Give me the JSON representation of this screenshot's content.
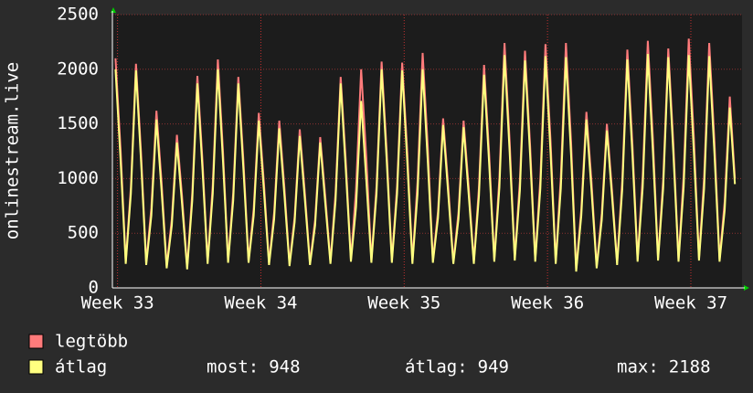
{
  "chart_data": {
    "type": "line",
    "y_label": "onlinestream.live",
    "x": [
      0.15,
      0.4,
      0.65,
      0.9,
      1.15,
      1.4,
      1.65,
      1.9,
      2.15,
      2.4,
      2.65,
      2.9,
      3.15,
      3.4,
      3.65,
      3.9,
      4.15,
      4.4,
      4.65,
      4.9,
      5.15,
      5.4,
      5.65,
      5.9,
      6.15,
      6.4,
      6.65,
      6.9,
      7.15,
      7.4,
      7.65,
      7.9,
      8.15,
      8.4,
      8.65,
      8.9,
      9.15,
      9.4,
      9.65,
      9.9,
      10.15,
      10.4,
      10.65,
      10.9,
      11.15,
      11.4,
      11.65,
      11.9,
      12.15,
      12.4,
      12.65,
      12.9,
      13.15,
      13.4,
      13.65,
      13.9,
      14.15,
      14.4,
      14.65,
      14.9,
      15.15,
      15.4,
      15.65,
      15.9,
      16.15,
      16.4,
      16.65,
      16.9,
      17.15,
      17.4,
      17.65,
      17.9,
      18.15,
      18.4,
      18.65,
      18.9,
      19.15,
      19.4,
      19.65,
      19.9,
      20.15,
      20.4,
      20.65,
      20.9,
      21.15,
      21.4,
      21.65,
      21.9,
      22.15,
      22.4,
      22.65,
      22.9,
      23.15,
      23.4,
      23.65,
      23.9,
      24.15,
      24.4,
      24.65,
      24.9,
      25.15,
      25.4,
      25.65,
      25.9,
      26.15,
      26.4,
      26.65,
      26.9,
      27.15,
      27.4,
      27.65,
      27.9,
      28.15,
      28.4,
      28.65,
      28.9,
      29.15,
      29.4,
      29.65,
      29.9,
      30.15,
      30.4
    ],
    "series": [
      {
        "name": "legtöbb",
        "color": "#ff7b7b",
        "values": [
          2100,
          1260,
          240,
          920,
          2050,
          1230,
          230,
          730,
          1620,
          970,
          200,
          630,
          1400,
          840,
          190,
          870,
          1940,
          1160,
          240,
          940,
          2090,
          1250,
          250,
          870,
          1930,
          1160,
          250,
          720,
          1600,
          960,
          230,
          690,
          1530,
          920,
          220,
          650,
          1450,
          870,
          230,
          620,
          1380,
          830,
          240,
          870,
          1930,
          1160,
          260,
          900,
          2000,
          1200,
          250,
          930,
          2070,
          1240,
          250,
          930,
          2060,
          1240,
          240,
          970,
          2150,
          1290,
          250,
          700,
          1550,
          930,
          240,
          690,
          1530,
          920,
          240,
          920,
          2040,
          1220,
          260,
          1010,
          2240,
          1340,
          270,
          980,
          2170,
          1300,
          260,
          1000,
          2230,
          1340,
          240,
          1010,
          2240,
          1340,
          170,
          720,
          1610,
          970,
          200,
          680,
          1500,
          900,
          230,
          980,
          2180,
          1310,
          260,
          1020,
          2260,
          1360,
          270,
          990,
          2190,
          1310,
          260,
          1030,
          2280,
          1370,
          270,
          1010,
          2240,
          1340,
          260,
          790,
          1750,
          1000
        ]
      },
      {
        "name": "átlag",
        "color": "#ffff80",
        "values": [
          2000,
          1160,
          220,
          860,
          1990,
          1150,
          210,
          660,
          1540,
          890,
          180,
          570,
          1330,
          770,
          170,
          800,
          1870,
          1080,
          220,
          860,
          2000,
          1160,
          230,
          800,
          1870,
          1080,
          230,
          660,
          1530,
          890,
          210,
          630,
          1460,
          850,
          200,
          600,
          1390,
          810,
          210,
          570,
          1330,
          770,
          220,
          800,
          1870,
          1080,
          240,
          740,
          1710,
          990,
          230,
          860,
          2000,
          1160,
          230,
          860,
          1990,
          1150,
          220,
          860,
          2000,
          1160,
          230,
          640,
          1490,
          860,
          220,
          630,
          1470,
          850,
          220,
          840,
          1950,
          1130,
          240,
          920,
          2130,
          1240,
          250,
          890,
          2080,
          1210,
          240,
          910,
          2120,
          1230,
          220,
          910,
          2110,
          1220,
          150,
          660,
          1540,
          890,
          180,
          620,
          1440,
          840,
          210,
          900,
          2090,
          1210,
          240,
          920,
          2140,
          1240,
          250,
          910,
          2110,
          1220,
          240,
          920,
          2130,
          1240,
          250,
          910,
          2120,
          1230,
          240,
          710,
          1650,
          950
        ]
      }
    ],
    "xlim": [
      0,
      30.75
    ],
    "xticks": [
      {
        "value": 0.25,
        "label": "Week 33"
      },
      {
        "value": 7.25,
        "label": "Week 34"
      },
      {
        "value": 14.25,
        "label": "Week 35"
      },
      {
        "value": 21.25,
        "label": "Week 36"
      },
      {
        "value": 28.25,
        "label": "Week 37"
      }
    ],
    "ylim": [
      0,
      2500
    ],
    "yticks": [
      0,
      500,
      1000,
      1500,
      2000,
      2500
    ],
    "grid": true,
    "stats": [
      {
        "label": "most:",
        "value": 948
      },
      {
        "label": "átlag:",
        "value": 949
      },
      {
        "label": "max:",
        "value": 2188
      }
    ]
  }
}
